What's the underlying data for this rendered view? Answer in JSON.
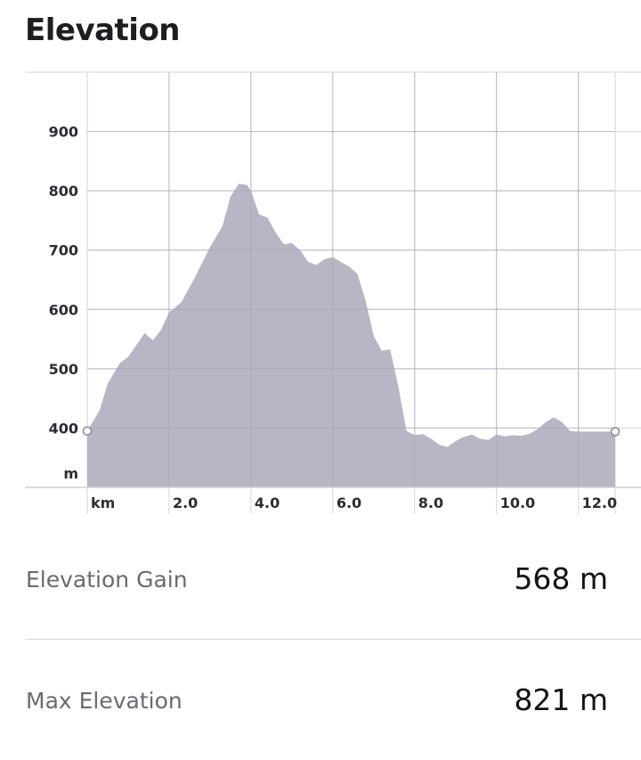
{
  "section": {
    "title": "Elevation"
  },
  "chart_data": {
    "type": "area",
    "x": [
      0,
      0.3,
      0.5,
      0.8,
      1.0,
      1.2,
      1.4,
      1.6,
      1.8,
      2.0,
      2.3,
      2.6,
      3.0,
      3.3,
      3.5,
      3.7,
      3.9,
      4.0,
      4.2,
      4.4,
      4.6,
      4.8,
      5.0,
      5.2,
      5.4,
      5.6,
      5.8,
      6.0,
      6.2,
      6.4,
      6.6,
      6.8,
      7.0,
      7.2,
      7.4,
      7.6,
      7.8,
      8.0,
      8.2,
      8.4,
      8.6,
      8.8,
      9.0,
      9.2,
      9.4,
      9.6,
      9.8,
      10.0,
      10.2,
      10.4,
      10.6,
      10.8,
      11.0,
      11.2,
      11.4,
      11.6,
      11.8,
      12.0,
      12.2,
      12.4,
      12.6,
      12.9
    ],
    "y": [
      395,
      430,
      475,
      510,
      520,
      540,
      560,
      548,
      565,
      595,
      612,
      650,
      705,
      740,
      790,
      812,
      810,
      800,
      760,
      755,
      730,
      710,
      712,
      700,
      680,
      675,
      685,
      688,
      680,
      672,
      660,
      615,
      555,
      530,
      533,
      470,
      395,
      388,
      390,
      382,
      372,
      368,
      378,
      385,
      389,
      382,
      380,
      389,
      386,
      388,
      387,
      390,
      398,
      410,
      418,
      410,
      395,
      394,
      394,
      394,
      394,
      394
    ],
    "xlim": [
      0,
      12.9
    ],
    "ylim": [
      300,
      1000
    ],
    "yticks": [
      900,
      800,
      700,
      600,
      500,
      400
    ],
    "ytick_labels": [
      "900",
      "800",
      "700",
      "600",
      "500",
      "400"
    ],
    "y_unit": "m",
    "xticks": [
      2,
      4,
      6,
      8,
      10,
      12
    ],
    "xtick_labels": [
      "2.0",
      "4.0",
      "6.0",
      "8.0",
      "10.0",
      "12.0"
    ],
    "x_unit": "km",
    "grid": true,
    "fill_color": "#b7b6c4",
    "grid_color": "#dcdce1"
  },
  "stats": {
    "gain_label": "Elevation Gain",
    "gain_value": "568 m",
    "max_label": "Max Elevation",
    "max_value": "821 m"
  }
}
